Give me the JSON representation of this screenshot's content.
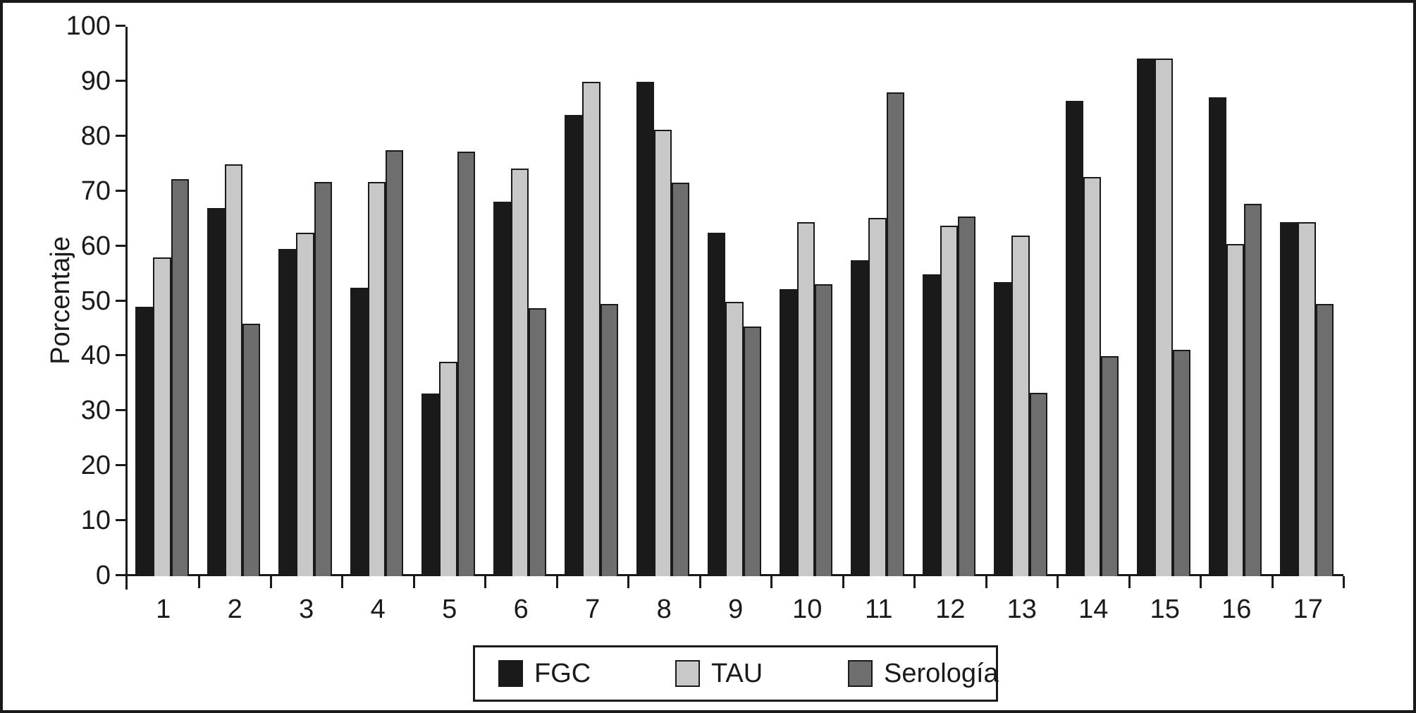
{
  "figure": {
    "background": "#ffffff",
    "frame_color": "#1a1a1a"
  },
  "chart_data": {
    "type": "bar",
    "title": "",
    "xlabel": "",
    "ylabel": "Porcentaje",
    "ylim": [
      0,
      100
    ],
    "ytick_step": 10,
    "grid": false,
    "legend_position": "bottom",
    "axis_color": "#1a1a1a",
    "categories": [
      "1",
      "2",
      "3",
      "4",
      "5",
      "6",
      "7",
      "8",
      "9",
      "10",
      "11",
      "12",
      "13",
      "14",
      "15",
      "16",
      "17"
    ],
    "series": [
      {
        "name": "FGC",
        "color": "#1a1a1a",
        "values": [
          49,
          67,
          59.5,
          52.5,
          33.3,
          68.2,
          84,
          90,
          62.5,
          52.2,
          57.5,
          55,
          53.5,
          86.5,
          94.2,
          87.2,
          64.5
        ]
      },
      {
        "name": "TAU",
        "color": "#c8c8c8",
        "values": [
          58,
          75,
          62.5,
          71.7,
          39,
          74.2,
          90,
          81.2,
          50,
          64.5,
          65.2,
          63.8,
          62,
          72.6,
          94.2,
          60.5,
          64.5
        ]
      },
      {
        "name": "Serología",
        "color": "#6e6e6e",
        "values": [
          72.3,
          46,
          71.7,
          77.5,
          77.3,
          48.8,
          49.6,
          71.6,
          45.5,
          53.2,
          88,
          65.5,
          33.4,
          40,
          41.2,
          67.8,
          49.5
        ]
      }
    ]
  }
}
